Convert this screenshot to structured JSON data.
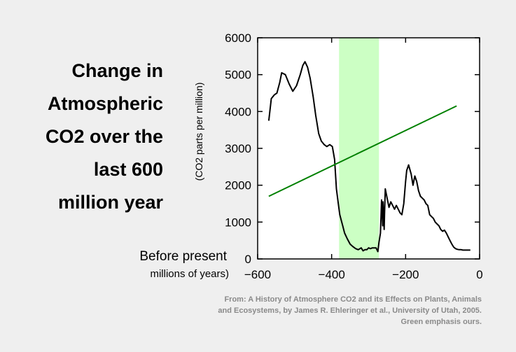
{
  "title_lines": [
    "Change in",
    "Atmospheric",
    "CO2 over the",
    "last 600",
    "million year"
  ],
  "ylabel": "(CO2 parts per million)",
  "xlabel_line1": "Before present",
  "xlabel_line2": "millions of years)",
  "source": "From:  A History of Atmosphere CO2 and its Effects on Plants, Animals and Ecosystems, by James R. Ehleringer et al., University of Utah, 2005.  Green emphasis ours.",
  "chart_data": {
    "type": "line",
    "xlim": [
      -600,
      0
    ],
    "ylim": [
      0,
      6000
    ],
    "xticks": [
      -600,
      -400,
      -200,
      0
    ],
    "yticks": [
      0,
      1000,
      2000,
      3000,
      4000,
      5000,
      6000
    ],
    "xtick_labels": [
      "−600",
      "−400",
      "−200",
      "0"
    ],
    "ytick_labels": [
      "0",
      "1000",
      "2000",
      "3000",
      "4000",
      "5000",
      "6000"
    ],
    "highlight_band": {
      "x": [
        -380,
        -272
      ],
      "color": "#ccffc4"
    },
    "series": [
      {
        "color": "#000000",
        "x": [
          -570,
          -563,
          -555,
          -548,
          -540,
          -535,
          -525,
          -515,
          -505,
          -495,
          -485,
          -478,
          -472,
          -465,
          -458,
          -450,
          -443,
          -435,
          -428,
          -420,
          -413,
          -405,
          -398,
          -392,
          -387,
          -382,
          -378,
          -374,
          -370,
          -365,
          -358,
          -350,
          -342,
          -335,
          -328,
          -320,
          -315,
          -310,
          -305,
          -300,
          -295,
          -290,
          -285,
          -280,
          -275,
          -272,
          -268,
          -265,
          -263,
          -262,
          -261,
          -259,
          -258,
          -257,
          -255,
          -250,
          -245,
          -240,
          -235,
          -230,
          -225,
          -220,
          -215,
          -210,
          -205,
          -200,
          -197,
          -192,
          -185,
          -180,
          -175,
          -170,
          -165,
          -160,
          -155,
          -150,
          -145,
          -140,
          -135,
          -130,
          -125,
          -120,
          -115,
          -110,
          -105,
          -100,
          -95,
          -90,
          -85,
          -80,
          -75,
          -70,
          -65,
          -60,
          -55,
          -50,
          -45,
          -40,
          -35,
          -30,
          -25
        ],
        "y": [
          3750,
          4350,
          4450,
          4500,
          4800,
          5050,
          5000,
          4750,
          4550,
          4700,
          5000,
          5250,
          5350,
          5200,
          4900,
          4400,
          3900,
          3400,
          3200,
          3100,
          3050,
          3100,
          3050,
          2700,
          1900,
          1500,
          1200,
          1050,
          900,
          700,
          550,
          400,
          330,
          280,
          250,
          300,
          220,
          250,
          250,
          300,
          280,
          300,
          300,
          300,
          200,
          450,
          700,
          1600,
          1200,
          900,
          1550,
          1100,
          800,
          1200,
          1900,
          1650,
          1400,
          1550,
          1450,
          1350,
          1450,
          1350,
          1250,
          1200,
          1500,
          2100,
          2400,
          2550,
          2300,
          2000,
          2250,
          2100,
          1850,
          1700,
          1650,
          1600,
          1500,
          1450,
          1200,
          1150,
          1100,
          1000,
          950,
          900,
          800,
          750,
          780,
          700,
          600,
          500,
          400,
          320,
          280,
          260,
          250,
          250,
          240,
          240,
          240,
          240,
          240
        ]
      },
      {
        "color": "#008000",
        "x": [
          -570,
          -62
        ],
        "y": [
          1700,
          4150
        ]
      }
    ]
  }
}
